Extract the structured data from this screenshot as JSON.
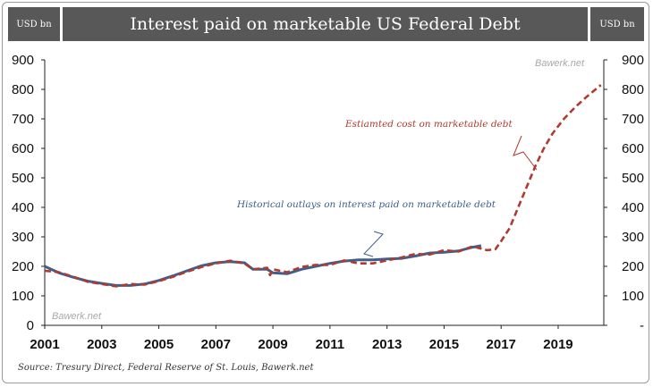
{
  "header": {
    "left_unit": "USD bn",
    "title": "Interest paid on marketable US Federal Debt",
    "right_unit": "USD bn"
  },
  "source": "Source: Tresury Direct, Federal Reserve of St. Louis, Bawerk.net",
  "watermarks": [
    "Bawerk.net",
    "Bawerk.net"
  ],
  "colors": {
    "historical": "#3d5f8e",
    "estimated": "#b03a30",
    "header": "#585858"
  },
  "chart_data": {
    "type": "line",
    "xlim": [
      2001,
      2020.6
    ],
    "ylim": [
      0,
      900
    ],
    "x_ticks": [
      "2001",
      "2003",
      "2005",
      "2007",
      "2009",
      "2011",
      "2013",
      "2015",
      "2017",
      "2019"
    ],
    "y_ticks_left": [
      "0",
      "100",
      "200",
      "300",
      "400",
      "500",
      "600",
      "700",
      "800",
      "900"
    ],
    "y_ticks_right": [
      "-",
      "100",
      "200",
      "300",
      "400",
      "500",
      "600",
      "700",
      "800",
      "900"
    ],
    "annotations": [
      {
        "text": "Historical outlays on interest paid on marketable debt",
        "series": "historical"
      },
      {
        "text": "Estiamted cost on marketable debt",
        "series": "estimated"
      }
    ],
    "series": [
      {
        "key": "historical",
        "style": "solid",
        "x": [
          2001.0,
          2001.5,
          2002.0,
          2002.5,
          2003.0,
          2003.5,
          2004.0,
          2004.5,
          2005.0,
          2005.5,
          2006.0,
          2006.5,
          2007.0,
          2007.5,
          2008.0,
          2008.3,
          2008.8,
          2009.0,
          2009.5,
          2010.0,
          2010.5,
          2011.0,
          2011.5,
          2012.0,
          2012.5,
          2013.0,
          2013.5,
          2014.0,
          2014.5,
          2015.0,
          2015.5,
          2016.0,
          2016.3
        ],
        "y": [
          200,
          178,
          163,
          150,
          142,
          135,
          135,
          140,
          152,
          168,
          185,
          202,
          212,
          216,
          212,
          190,
          190,
          178,
          175,
          190,
          200,
          210,
          218,
          222,
          222,
          225,
          227,
          235,
          245,
          248,
          252,
          265,
          270
        ]
      },
      {
        "key": "estimated",
        "style": "dashed",
        "x": [
          2001.0,
          2001.5,
          2002.0,
          2002.5,
          2003.0,
          2003.5,
          2004.0,
          2004.5,
          2005.0,
          2005.5,
          2006.0,
          2006.5,
          2007.0,
          2007.5,
          2008.0,
          2008.3,
          2008.8,
          2008.9,
          2009.0,
          2009.5,
          2010.0,
          2010.5,
          2011.0,
          2011.5,
          2012.0,
          2012.5,
          2013.0,
          2013.5,
          2014.0,
          2014.5,
          2015.0,
          2015.5,
          2016.0,
          2016.5,
          2016.8,
          2017.0,
          2017.3,
          2017.6,
          2017.9,
          2018.2,
          2018.5,
          2018.8,
          2019.2,
          2019.6,
          2020.0,
          2020.5
        ],
        "y": [
          185,
          180,
          165,
          148,
          140,
          132,
          140,
          138,
          150,
          165,
          182,
          198,
          210,
          219,
          210,
          190,
          195,
          170,
          190,
          180,
          198,
          205,
          205,
          220,
          210,
          210,
          220,
          230,
          242,
          240,
          255,
          250,
          268,
          255,
          258,
          285,
          330,
          400,
          470,
          540,
          600,
          650,
          700,
          740,
          775,
          815
        ]
      }
    ]
  }
}
